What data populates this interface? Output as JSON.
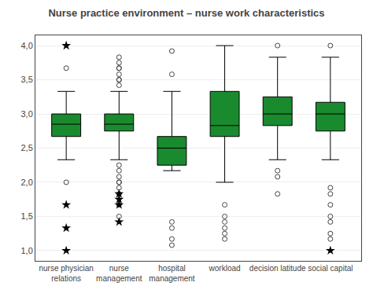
{
  "chart_data": {
    "type": "box",
    "title": "Nurse practice environment – nurse work characteristics",
    "categories": [
      "nurse physician\nrelations",
      "nurse\nmanagement",
      "hospital\nmanagement",
      "workload",
      "decision latitude",
      "social capital"
    ],
    "boxes": [
      {
        "q1": 2.67,
        "median": 2.85,
        "q3": 3.0,
        "whislo": 2.33,
        "whishi": 3.33
      },
      {
        "q1": 2.75,
        "median": 2.85,
        "q3": 3.0,
        "whislo": 2.33,
        "whishi": 3.33
      },
      {
        "q1": 2.25,
        "median": 2.5,
        "q3": 2.67,
        "whislo": 2.17,
        "whishi": 3.33
      },
      {
        "q1": 2.67,
        "median": 2.83,
        "q3": 3.33,
        "whislo": 2.0,
        "whishi": 4.0
      },
      {
        "q1": 2.83,
        "median": 3.0,
        "q3": 3.25,
        "whislo": 2.33,
        "whishi": 3.83
      },
      {
        "q1": 2.75,
        "median": 3.0,
        "q3": 3.17,
        "whislo": 2.33,
        "whishi": 3.83
      }
    ],
    "outliers": [
      [
        3.67,
        2.0
      ],
      [
        3.83,
        3.75,
        3.67,
        3.67,
        3.58,
        3.5,
        3.5,
        3.42,
        2.25,
        2.17,
        2.08,
        2.0,
        2.0,
        1.92,
        1.83,
        1.67,
        1.5
      ],
      [
        3.92,
        3.58,
        1.42,
        1.33,
        1.17,
        1.08
      ],
      [
        1.67,
        1.5,
        1.42,
        1.33,
        1.25,
        1.17
      ],
      [
        4.0,
        2.17,
        2.08,
        1.83
      ],
      [
        4.0,
        1.92,
        1.83,
        1.67,
        1.5,
        1.42,
        1.25,
        1.17
      ]
    ],
    "extreme_outliers": [
      [
        4.0,
        1.67,
        1.33,
        1.0
      ],
      [
        1.83,
        1.75,
        1.67,
        1.42
      ],
      [],
      [],
      [],
      [
        1.0
      ]
    ],
    "color": "#1a8a2e",
    "ylim": [
      0.85,
      4.15
    ],
    "yticks": [
      {
        "value": 1.0,
        "label": "1,0"
      },
      {
        "value": 1.5,
        "label": "1,5"
      },
      {
        "value": 2.0,
        "label": "2,0"
      },
      {
        "value": 2.5,
        "label": "2,5"
      },
      {
        "value": 3.0,
        "label": "3,0"
      },
      {
        "value": 3.5,
        "label": "3,5"
      },
      {
        "value": 4.0,
        "label": "4,0"
      }
    ],
    "grid": true
  }
}
